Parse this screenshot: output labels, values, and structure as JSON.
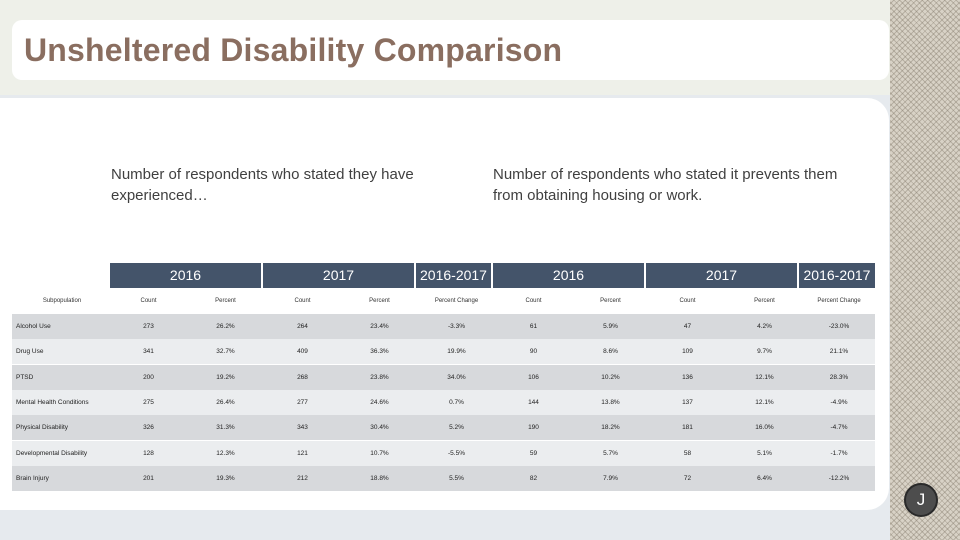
{
  "title": "Unsheltered Disability Comparison",
  "notes": {
    "left": "Number of respondents who stated they have experienced…",
    "right": "Number of respondents who stated it prevents them from obtaining housing or work."
  },
  "table": {
    "year_headers": [
      "2016",
      "2017",
      "2016-2017",
      "2016",
      "2017",
      "2016-2017"
    ],
    "column_headers": [
      "Subpopulation",
      "Count",
      "Percent",
      "Count",
      "Percent",
      "Percent Change",
      "Count",
      "Percent",
      "Count",
      "Percent",
      "Percent Change"
    ],
    "rows": [
      [
        "Alcohol Use",
        "273",
        "26.2%",
        "264",
        "23.4%",
        "-3.3%",
        "61",
        "5.9%",
        "47",
        "4.2%",
        "-23.0%"
      ],
      [
        "Drug Use",
        "341",
        "32.7%",
        "409",
        "36.3%",
        "19.9%",
        "90",
        "8.6%",
        "109",
        "9.7%",
        "21.1%"
      ],
      [
        "PTSD",
        "200",
        "19.2%",
        "268",
        "23.8%",
        "34.0%",
        "106",
        "10.2%",
        "136",
        "12.1%",
        "28.3%"
      ],
      [
        "Mental Health Conditions",
        "275",
        "26.4%",
        "277",
        "24.6%",
        "0.7%",
        "144",
        "13.8%",
        "137",
        "12.1%",
        "-4.9%"
      ],
      [
        "Physical Disability",
        "326",
        "31.3%",
        "343",
        "30.4%",
        "5.2%",
        "190",
        "18.2%",
        "181",
        "16.0%",
        "-4.7%"
      ],
      [
        "Developmental Disability",
        "128",
        "12.3%",
        "121",
        "10.7%",
        "-5.5%",
        "59",
        "5.7%",
        "58",
        "5.1%",
        "-1.7%"
      ],
      [
        "Brain Injury",
        "201",
        "19.3%",
        "212",
        "18.8%",
        "5.5%",
        "82",
        "7.9%",
        "72",
        "6.4%",
        "-12.2%"
      ]
    ]
  },
  "badge": "J"
}
